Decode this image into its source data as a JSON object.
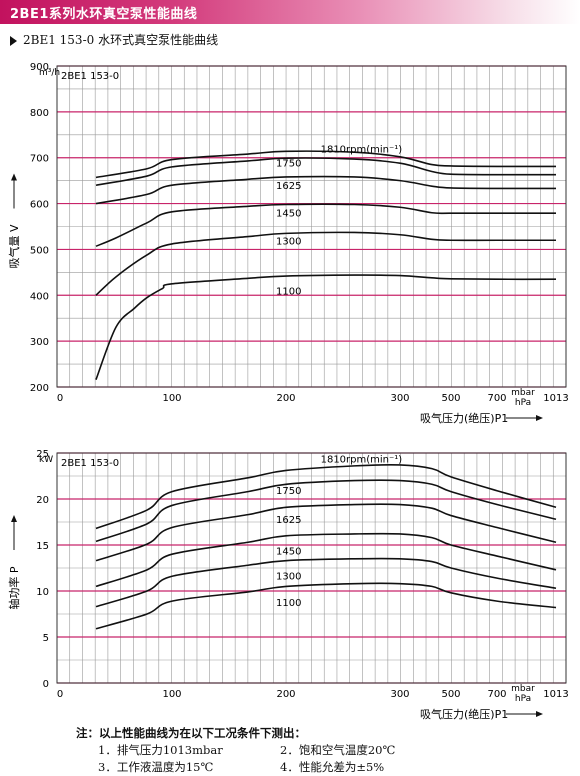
{
  "banner": {
    "title": "2BE1系列水环真空泵性能曲线"
  },
  "subtitle": "2BE1 153-0 水环式真空泵性能曲线",
  "colors": {
    "banner_start": "#c2125e",
    "major_grid": "#c8246a",
    "minor_grid": "#9a9a9a",
    "curve": "#111111"
  },
  "notes": {
    "title": "注：以上性能曲线为在以下工况条件下测出：",
    "items": [
      "1．排气压力1013mbar",
      "2．饱和空气温度20℃",
      "3．工作液温度为15℃",
      "4．性能允差为±5%"
    ]
  },
  "chart_data": [
    {
      "type": "line",
      "model_label": "2BE1 153-0",
      "ylabel": "吸气量 V",
      "yunit": "m³/h",
      "xlabel": "吸气压力(绝压)P1",
      "xunit": "mbar hPa",
      "xscale": "reciprocal",
      "x_ticks": [
        100,
        200,
        300,
        500,
        700,
        1013
      ],
      "ylim": [
        200,
        900
      ],
      "y_ticks": [
        200,
        300,
        400,
        500,
        600,
        700,
        800,
        900
      ],
      "origin_label": "0",
      "grid": true,
      "series": [
        {
          "name": "1810rpm(min⁻¹)",
          "label_x": 230,
          "label_y": 720,
          "x": [
            33,
            60,
            100,
            150,
            200,
            250,
            300,
            400,
            500,
            700,
            1013
          ],
          "y": [
            657,
            676,
            696,
            708,
            714,
            712,
            702,
            685,
            682,
            681,
            681
          ]
        },
        {
          "name": "1750",
          "label_x": 200,
          "label_y": 690,
          "x": [
            33,
            60,
            100,
            150,
            200,
            250,
            300,
            400,
            500,
            700,
            1013
          ],
          "y": [
            640,
            660,
            680,
            693,
            699,
            697,
            688,
            670,
            664,
            663,
            663
          ]
        },
        {
          "name": "1625",
          "label_x": 200,
          "label_y": 640,
          "x": [
            33,
            60,
            100,
            150,
            200,
            250,
            300,
            400,
            500,
            700,
            1013
          ],
          "y": [
            600,
            620,
            640,
            653,
            658,
            658,
            650,
            638,
            634,
            633,
            633
          ]
        },
        {
          "name": "1450",
          "label_x": 200,
          "label_y": 580,
          "x": [
            33,
            40,
            60,
            100,
            150,
            200,
            250,
            300,
            400,
            500,
            700,
            1013
          ],
          "y": [
            507,
            525,
            558,
            582,
            594,
            598,
            598,
            592,
            580,
            579,
            579,
            579
          ]
        },
        {
          "name": "1300",
          "label_x": 200,
          "label_y": 520,
          "x": [
            33,
            40,
            60,
            100,
            150,
            200,
            250,
            300,
            400,
            500,
            700,
            1013
          ],
          "y": [
            400,
            440,
            488,
            512,
            528,
            535,
            537,
            532,
            522,
            520,
            520,
            520
          ]
        },
        {
          "name": "1100",
          "label_x": 200,
          "label_y": 410,
          "x": [
            33,
            40,
            50,
            60,
            80,
            100,
            150,
            200,
            250,
            300,
            400,
            500,
            700,
            1013
          ],
          "y": [
            216,
            330,
            372,
            395,
            415,
            425,
            437,
            442,
            444,
            443,
            438,
            436,
            435,
            435
          ]
        }
      ]
    },
    {
      "type": "line",
      "model_label": "2BE1 153-0",
      "ylabel": "轴功率 P",
      "yunit": "kW",
      "xlabel": "吸气压力(绝压)P1",
      "xunit": "mbar hPa",
      "xscale": "reciprocal",
      "x_ticks": [
        100,
        200,
        300,
        500,
        700,
        1013
      ],
      "ylim": [
        0,
        25
      ],
      "y_ticks": [
        0,
        5,
        10,
        15,
        20,
        25
      ],
      "origin_label": "0",
      "grid": true,
      "series": [
        {
          "name": "1810rpm(min⁻¹)",
          "label_x": 230,
          "label_y": 24.4,
          "x": [
            33,
            60,
            100,
            150,
            200,
            250,
            300,
            400,
            500,
            700,
            1013
          ],
          "y": [
            16.8,
            18.8,
            20.8,
            22.3,
            23.1,
            23.6,
            23.7,
            23.3,
            22.4,
            20.9,
            19.1
          ]
        },
        {
          "name": "1750",
          "label_x": 200,
          "label_y": 21,
          "x": [
            33,
            60,
            100,
            150,
            200,
            250,
            300,
            400,
            500,
            700,
            1013
          ],
          "y": [
            15.4,
            17.3,
            19.3,
            20.8,
            21.6,
            22.0,
            22.0,
            21.6,
            20.8,
            19.4,
            17.8
          ]
        },
        {
          "name": "1625",
          "label_x": 200,
          "label_y": 17.8,
          "x": [
            33,
            60,
            100,
            150,
            200,
            250,
            300,
            400,
            500,
            700,
            1013
          ],
          "y": [
            13.3,
            15.1,
            16.9,
            18.3,
            19.1,
            19.4,
            19.4,
            19.0,
            18.2,
            16.9,
            15.3
          ]
        },
        {
          "name": "1450",
          "label_x": 200,
          "label_y": 14.4,
          "x": [
            33,
            60,
            100,
            150,
            200,
            250,
            300,
            400,
            500,
            700,
            1013
          ],
          "y": [
            10.5,
            12.3,
            14.0,
            15.3,
            16.0,
            16.2,
            16.2,
            15.8,
            15.0,
            13.8,
            12.3
          ]
        },
        {
          "name": "1300",
          "label_x": 200,
          "label_y": 11.7,
          "x": [
            33,
            60,
            100,
            150,
            200,
            250,
            300,
            400,
            500,
            700,
            1013
          ],
          "y": [
            8.3,
            10.0,
            11.6,
            12.8,
            13.3,
            13.5,
            13.5,
            13.2,
            12.5,
            11.4,
            10.3
          ]
        },
        {
          "name": "1100",
          "label_x": 200,
          "label_y": 8.8,
          "x": [
            33,
            60,
            100,
            150,
            200,
            250,
            300,
            400,
            500,
            700,
            1013
          ],
          "y": [
            5.9,
            7.5,
            8.9,
            9.9,
            10.5,
            10.8,
            10.8,
            10.5,
            9.8,
            8.9,
            8.2
          ]
        }
      ]
    }
  ]
}
